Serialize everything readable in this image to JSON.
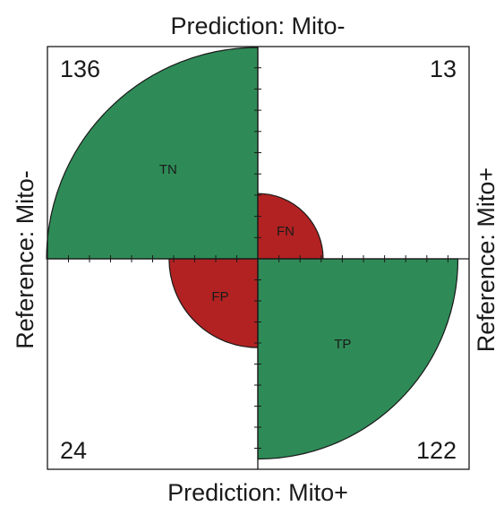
{
  "chart_data": {
    "type": "fourfold",
    "labels": {
      "top": "Prediction: Mito-",
      "bottom": "Prediction: Mito+",
      "left": "Reference: Mito-",
      "right": "Reference: Mito+"
    },
    "cells": [
      {
        "id": "TN",
        "label": "TN",
        "count": 136,
        "quadrant": "top-left",
        "color": "#2e8b57"
      },
      {
        "id": "FN",
        "label": "FN",
        "count": 13,
        "quadrant": "top-right",
        "color": "#b22222"
      },
      {
        "id": "FP",
        "label": "FP",
        "count": 24,
        "quadrant": "bottom-left",
        "color": "#b22222"
      },
      {
        "id": "TP",
        "label": "TP",
        "count": 122,
        "quadrant": "bottom-right",
        "color": "#2e8b57"
      }
    ],
    "max_count": 136,
    "axis_ticks_per_half": 10
  }
}
